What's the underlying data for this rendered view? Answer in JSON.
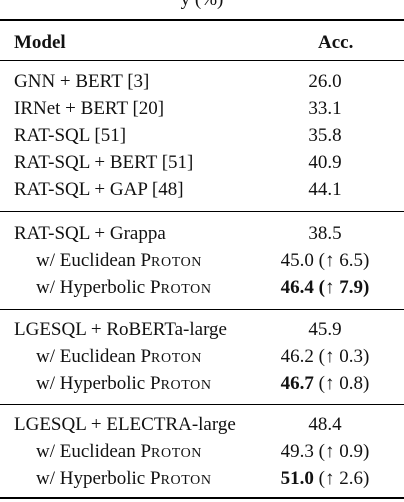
{
  "caption_fragment": "y (%)",
  "header": {
    "model": "Model",
    "acc": "Acc."
  },
  "groups": [
    {
      "rows": [
        {
          "name": "GNN + BERT [3]",
          "acc": "26.0"
        },
        {
          "name": "IRNet + BERT [20]",
          "acc": "33.1"
        },
        {
          "name": "RAT-SQL [51]",
          "acc": "35.8"
        },
        {
          "name": "RAT-SQL + BERT [51]",
          "acc": "40.9"
        },
        {
          "name": "RAT-SQL + GAP [48]",
          "acc": "44.1"
        }
      ]
    },
    {
      "base": {
        "name": "RAT-SQL + Grappa",
        "acc": "38.5"
      },
      "variants": [
        {
          "prefix": "w/ Euclidean",
          "sc_first": "P",
          "sc_rest": "ROTON",
          "acc": "45.0",
          "delta": "(↑ 6.5)"
        },
        {
          "prefix": "w/ Hyperbolic",
          "sc_first": "P",
          "sc_rest": "ROTON",
          "acc": "46.4",
          "delta": "(↑ 7.9)"
        }
      ]
    },
    {
      "base": {
        "name": "LGESQL + RoBERTa-large",
        "acc": "45.9"
      },
      "variants": [
        {
          "prefix": "w/ Euclidean",
          "sc_first": "P",
          "sc_rest": "ROTON",
          "acc": "46.2",
          "delta": "(↑ 0.3)"
        },
        {
          "prefix": "w/ Hyperbolic",
          "sc_first": "P",
          "sc_rest": "ROTON",
          "acc": "46.7",
          "delta": "(↑ 0.8)"
        }
      ]
    },
    {
      "base": {
        "name": "LGESQL + ELECTRA-large",
        "acc": "48.4"
      },
      "variants": [
        {
          "prefix": "w/ Euclidean",
          "sc_first": "P",
          "sc_rest": "ROTON",
          "acc": "49.3",
          "delta": "(↑ 0.9)"
        },
        {
          "prefix": "w/ Hyperbolic",
          "sc_first": "P",
          "sc_rest": "ROTON",
          "acc": "51.0",
          "delta": "(↑ 2.6)"
        }
      ]
    }
  ]
}
